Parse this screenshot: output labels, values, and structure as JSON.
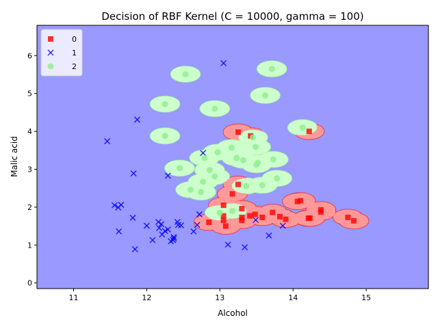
{
  "chart_data": {
    "type": "scatter",
    "title": "Decision of RBF Kernel (C = 10000, gamma = 100)",
    "xlabel": "Alcohol",
    "ylabel": "Malic acid",
    "xlim": [
      10.5,
      15.85
    ],
    "ylim": [
      -0.15,
      6.8
    ],
    "xticks": [
      11,
      12,
      13,
      14,
      15
    ],
    "yticks": [
      0,
      1,
      2,
      3,
      4,
      5,
      6
    ],
    "grid": false,
    "legend_position": "top-left",
    "background_region_color": "#9999ff",
    "series": [
      {
        "name": "0",
        "marker": "square",
        "color": "#ff0000",
        "region_color": "#ff9999",
        "points": [
          [
            13.25,
            3.98
          ],
          [
            14.22,
            4.0
          ],
          [
            13.42,
            3.88
          ],
          [
            13.25,
            2.6
          ],
          [
            13.17,
            2.35
          ],
          [
            13.05,
            2.05
          ],
          [
            14.1,
            2.17
          ],
          [
            14.06,
            2.15
          ],
          [
            13.3,
            1.96
          ],
          [
            14.38,
            1.93
          ],
          [
            14.38,
            1.87
          ],
          [
            13.72,
            1.86
          ],
          [
            13.3,
            1.73
          ],
          [
            13.82,
            1.75
          ],
          [
            14.75,
            1.73
          ],
          [
            12.85,
            1.6
          ],
          [
            13.05,
            1.77
          ],
          [
            13.05,
            1.65
          ],
          [
            13.3,
            1.65
          ],
          [
            13.48,
            1.81
          ],
          [
            13.58,
            1.73
          ],
          [
            13.41,
            1.77
          ],
          [
            13.9,
            1.68
          ],
          [
            14.21,
            1.71
          ],
          [
            14.23,
            1.71
          ],
          [
            14.83,
            1.64
          ],
          [
            13.08,
            1.5
          ]
        ]
      },
      {
        "name": "1",
        "marker": "x",
        "color": "#0000ff",
        "points": [
          [
            13.05,
            5.8
          ],
          [
            11.87,
            4.31
          ],
          [
            11.46,
            3.74
          ],
          [
            12.77,
            3.43
          ],
          [
            11.82,
            2.89
          ],
          [
            12.29,
            2.83
          ],
          [
            11.56,
            2.05
          ],
          [
            11.61,
            1.99
          ],
          [
            11.65,
            2.06
          ],
          [
            11.81,
            1.72
          ],
          [
            12.72,
            1.81
          ],
          [
            12.17,
            1.45
          ],
          [
            12.2,
            1.55
          ],
          [
            12.16,
            1.61
          ],
          [
            12.42,
            1.61
          ],
          [
            12.47,
            1.52
          ],
          [
            12.43,
            1.53
          ],
          [
            12.69,
            1.53
          ],
          [
            13.49,
            1.66
          ],
          [
            13.86,
            1.51
          ],
          [
            12.0,
            1.51
          ],
          [
            11.62,
            1.36
          ],
          [
            12.25,
            1.37
          ],
          [
            12.21,
            1.28
          ],
          [
            12.29,
            1.41
          ],
          [
            12.64,
            1.36
          ],
          [
            12.37,
            1.17
          ],
          [
            12.37,
            1.21
          ],
          [
            12.33,
            1.1
          ],
          [
            12.36,
            1.13
          ],
          [
            12.08,
            1.13
          ],
          [
            13.11,
            1.01
          ],
          [
            13.34,
            0.94
          ],
          [
            11.84,
            0.89
          ],
          [
            13.67,
            1.25
          ]
        ]
      },
      {
        "name": "2",
        "marker": "circle",
        "color": "#90ee90",
        "region_color": "#ccffcc",
        "points": [
          [
            13.71,
            5.65
          ],
          [
            12.53,
            5.51
          ],
          [
            13.62,
            4.95
          ],
          [
            12.25,
            4.72
          ],
          [
            12.93,
            4.6
          ],
          [
            14.13,
            4.1
          ],
          [
            12.25,
            3.88
          ],
          [
            13.45,
            3.84
          ],
          [
            13.49,
            3.59
          ],
          [
            13.16,
            3.57
          ],
          [
            12.97,
            3.45
          ],
          [
            12.79,
            3.3
          ],
          [
            13.23,
            3.3
          ],
          [
            13.32,
            3.24
          ],
          [
            13.73,
            3.26
          ],
          [
            13.52,
            3.17
          ],
          [
            13.5,
            3.12
          ],
          [
            12.45,
            3.03
          ],
          [
            12.86,
            2.98
          ],
          [
            12.93,
            2.81
          ],
          [
            13.78,
            2.76
          ],
          [
            12.77,
            2.67
          ],
          [
            13.36,
            2.56
          ],
          [
            13.58,
            2.58
          ],
          [
            12.6,
            2.46
          ],
          [
            12.74,
            2.4
          ],
          [
            13.0,
            1.85
          ],
          [
            13.17,
            1.9
          ]
        ]
      }
    ]
  }
}
